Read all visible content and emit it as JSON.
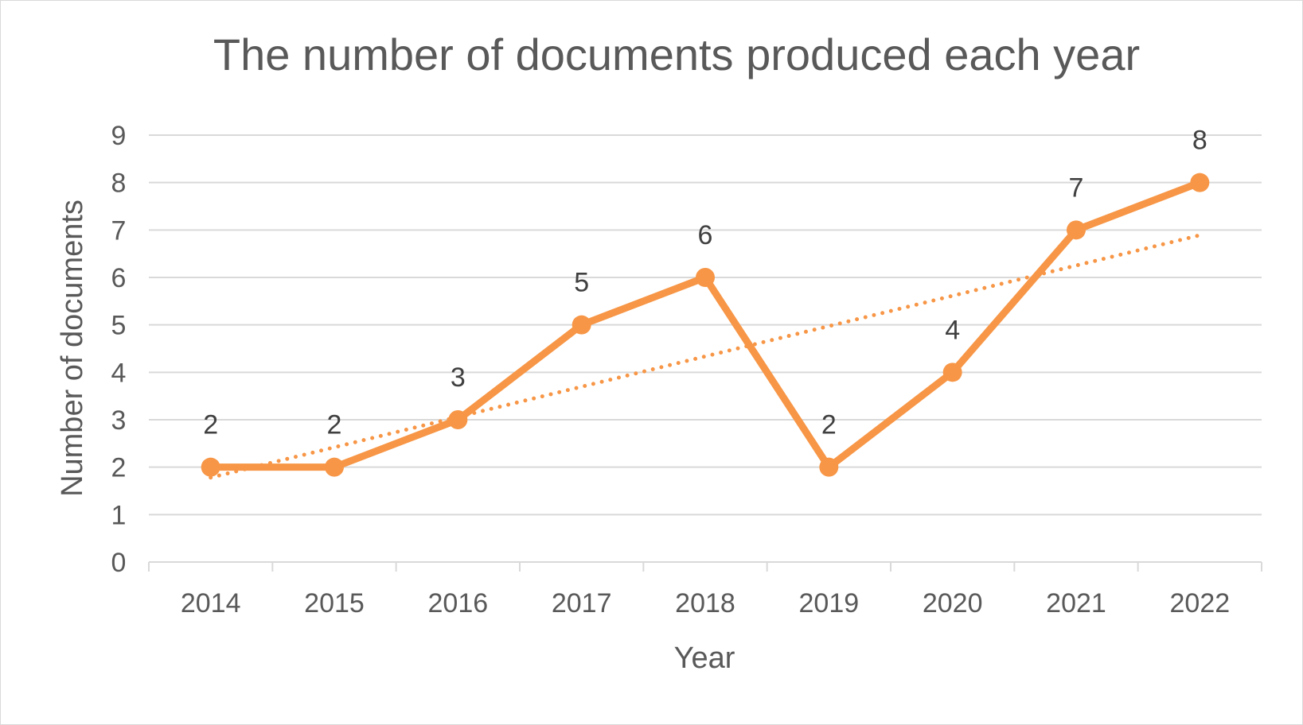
{
  "chart_data": {
    "type": "line",
    "title": "The number of documents produced each year",
    "xlabel": "Year",
    "ylabel": "Number of documents",
    "categories": [
      "2014",
      "2015",
      "2016",
      "2017",
      "2018",
      "2019",
      "2020",
      "2021",
      "2022"
    ],
    "series": [
      {
        "values": [
          2,
          2,
          3,
          5,
          6,
          2,
          4,
          7,
          8
        ],
        "color": "#F79646",
        "data_labels": [
          "2",
          "2",
          "3",
          "5",
          "6",
          "2",
          "4",
          "7",
          "8"
        ]
      }
    ],
    "trendline": {
      "type": "linear",
      "style": "dotted",
      "color": "#F79646",
      "start_value": 1.78,
      "end_value": 6.89
    },
    "yticks": [
      "0",
      "1",
      "2",
      "3",
      "4",
      "5",
      "6",
      "7",
      "8",
      "9"
    ],
    "ylim": [
      0,
      9
    ],
    "grid": true,
    "legend": "none"
  }
}
